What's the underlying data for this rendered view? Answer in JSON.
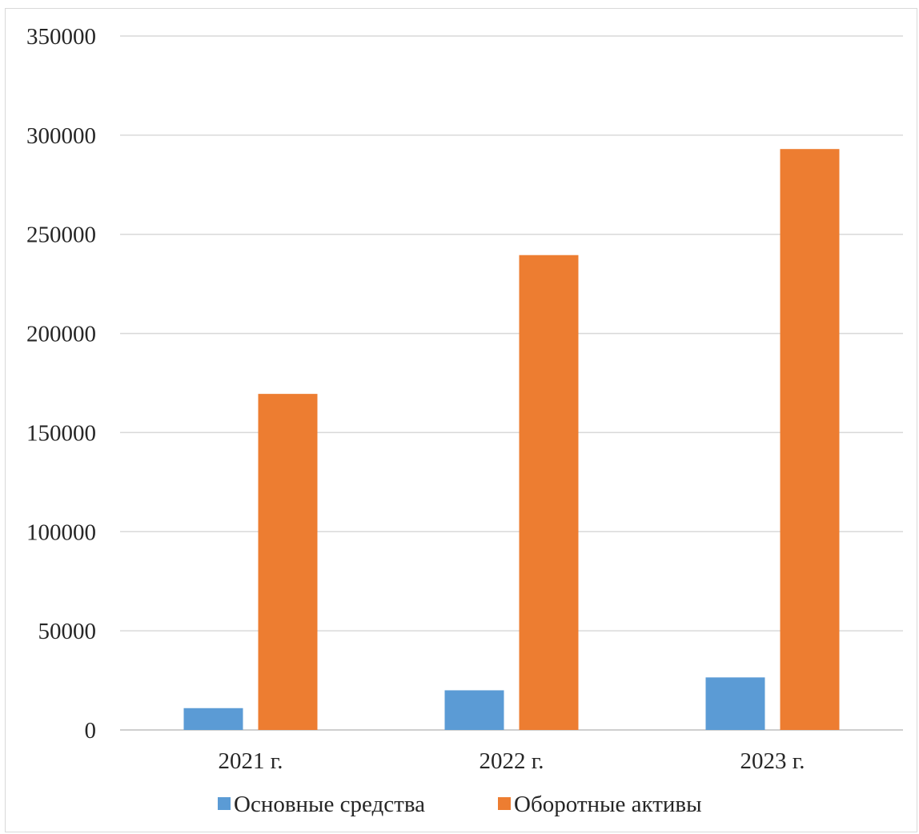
{
  "chart_data": {
    "type": "bar",
    "categories": [
      "2021 г.",
      "2022 г.",
      "2023 г."
    ],
    "series": [
      {
        "name": "Основные средства",
        "color": "#5B9BD5",
        "values": [
          11000,
          20000,
          26500
        ]
      },
      {
        "name": "Оборотные активы",
        "color": "#ED7D31",
        "values": [
          169500,
          239500,
          293000
        ]
      }
    ],
    "ylim": [
      0,
      350000
    ],
    "yticks": [
      0,
      50000,
      100000,
      150000,
      200000,
      250000,
      300000,
      350000
    ],
    "ytick_labels": [
      "0",
      "50000",
      "100000",
      "150000",
      "200000",
      "250000",
      "300000",
      "350000"
    ],
    "grid": true,
    "legend_position": "bottom",
    "title": "",
    "xlabel": "",
    "ylabel": ""
  }
}
